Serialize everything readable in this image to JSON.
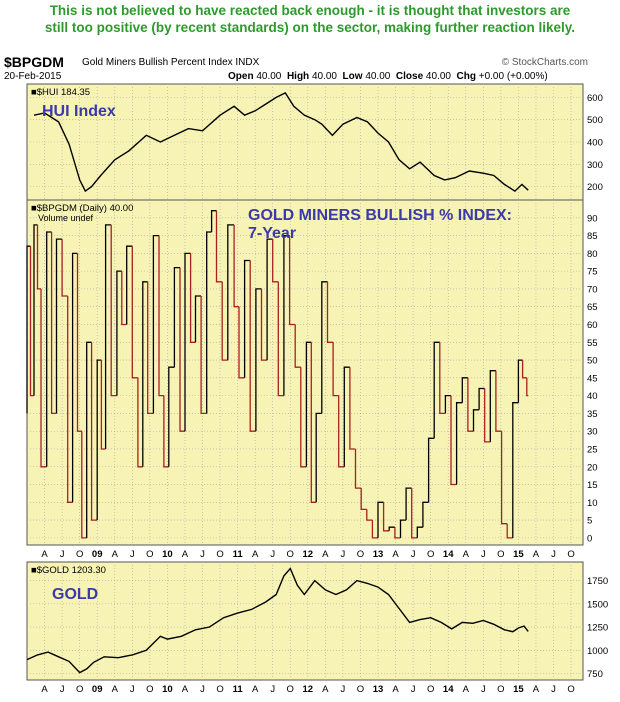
{
  "headline": {
    "line1": "This is not believed to have reacted back enough - it is thought that investors are",
    "line2": "still too positive (by recent standards) on the sector, making further reaction likely."
  },
  "header": {
    "symbol": "$BPGDM",
    "description": "Gold Miners Bullish Percent Index",
    "exchange": "INDX",
    "credit": "© StockCharts.com",
    "date": "20-Feb-2015",
    "open_label": "Open",
    "open": "40.00",
    "high_label": "High",
    "high": "40.00",
    "low_label": "Low",
    "low": "40.00",
    "close_label": "Close",
    "close": "40.00",
    "chg_label": "Chg",
    "chg": "+0.00 (+0.00%)"
  },
  "colors": {
    "panel_bg": "#f7f3b5",
    "grid": "#a8a8a8",
    "price": "#000000",
    "bp_down": "#a82020",
    "annotation": "#3a3aa8",
    "headline": "#2e9a2e"
  },
  "chart_data": [
    {
      "type": "line",
      "legend": "$HUI 184.35",
      "annotation": "HUI Index",
      "yticks": [
        200,
        300,
        400,
        500,
        600
      ],
      "ylim": [
        140,
        660
      ],
      "x": [
        2008.1,
        2008.25,
        2008.45,
        2008.6,
        2008.75,
        2008.83,
        2008.92,
        2009.05,
        2009.25,
        2009.45,
        2009.7,
        2009.9,
        2010.1,
        2010.3,
        2010.5,
        2010.75,
        2010.95,
        2011.1,
        2011.25,
        2011.4,
        2011.55,
        2011.68,
        2011.8,
        2011.95,
        2012.1,
        2012.2,
        2012.35,
        2012.5,
        2012.7,
        2012.85,
        2013.0,
        2013.15,
        2013.3,
        2013.45,
        2013.6,
        2013.8,
        2013.95,
        2014.1,
        2014.3,
        2014.5,
        2014.65,
        2014.8,
        2014.95,
        2015.05,
        2015.14
      ],
      "y": [
        520,
        530,
        490,
        390,
        230,
        180,
        200,
        250,
        320,
        360,
        430,
        400,
        430,
        460,
        450,
        520,
        560,
        520,
        540,
        570,
        600,
        620,
        560,
        520,
        500,
        480,
        430,
        480,
        510,
        490,
        440,
        400,
        320,
        280,
        310,
        250,
        230,
        240,
        270,
        260,
        250,
        210,
        180,
        210,
        184
      ]
    },
    {
      "type": "line",
      "legend": "$BPGDM (Daily) 40.00",
      "legend2": "Volume undef",
      "annotation_line1": "GOLD MINERS BULLISH % INDEX:",
      "annotation_line2": "7-Year",
      "yticks": [
        0,
        5,
        10,
        15,
        20,
        25,
        30,
        35,
        40,
        45,
        50,
        55,
        60,
        65,
        70,
        75,
        80,
        85,
        90
      ],
      "ylim": [
        -2,
        95
      ],
      "x": [
        2008.0,
        2008.05,
        2008.1,
        2008.15,
        2008.2,
        2008.28,
        2008.35,
        2008.42,
        2008.5,
        2008.58,
        2008.65,
        2008.72,
        2008.78,
        2008.85,
        2008.92,
        2009.0,
        2009.06,
        2009.12,
        2009.2,
        2009.28,
        2009.35,
        2009.42,
        2009.5,
        2009.58,
        2009.65,
        2009.72,
        2009.8,
        2009.88,
        2009.95,
        2010.02,
        2010.1,
        2010.18,
        2010.25,
        2010.33,
        2010.4,
        2010.48,
        2010.56,
        2010.63,
        2010.7,
        2010.78,
        2010.86,
        2010.95,
        2011.02,
        2011.1,
        2011.18,
        2011.26,
        2011.34,
        2011.42,
        2011.5,
        2011.58,
        2011.66,
        2011.74,
        2011.82,
        2011.9,
        2011.98,
        2012.05,
        2012.12,
        2012.2,
        2012.28,
        2012.36,
        2012.44,
        2012.52,
        2012.6,
        2012.68,
        2012.76,
        2012.84,
        2012.92,
        2013.0,
        2013.08,
        2013.16,
        2013.24,
        2013.32,
        2013.4,
        2013.48,
        2013.56,
        2013.64,
        2013.72,
        2013.8,
        2013.88,
        2013.96,
        2014.04,
        2014.12,
        2014.2,
        2014.28,
        2014.36,
        2014.44,
        2014.52,
        2014.6,
        2014.68,
        2014.76,
        2014.84,
        2014.92,
        2015.0,
        2015.06,
        2015.12,
        2015.14
      ],
      "y": [
        35,
        82,
        40,
        88,
        70,
        20,
        86,
        35,
        84,
        68,
        10,
        80,
        30,
        0,
        55,
        5,
        50,
        25,
        88,
        40,
        75,
        60,
        82,
        45,
        20,
        72,
        35,
        85,
        40,
        20,
        48,
        76,
        30,
        80,
        55,
        68,
        35,
        86,
        92,
        72,
        50,
        88,
        65,
        45,
        78,
        30,
        70,
        50,
        84,
        72,
        40,
        85,
        60,
        48,
        20,
        55,
        10,
        35,
        72,
        55,
        40,
        20,
        48,
        25,
        14,
        8,
        5,
        0,
        10,
        2,
        3,
        0,
        5,
        14,
        0,
        3,
        10,
        28,
        55,
        35,
        40,
        15,
        38,
        45,
        30,
        36,
        42,
        27,
        47,
        30,
        4,
        0,
        38,
        50,
        45,
        40
      ]
    },
    {
      "type": "line",
      "legend": "$GOLD 1203.30",
      "annotation": "GOLD",
      "yticks": [
        750,
        1000,
        1250,
        1500,
        1750
      ],
      "ylim": [
        680,
        1950
      ],
      "x": [
        2008.0,
        2008.15,
        2008.3,
        2008.45,
        2008.6,
        2008.75,
        2008.85,
        2008.95,
        2009.1,
        2009.3,
        2009.5,
        2009.7,
        2009.9,
        2010.0,
        2010.2,
        2010.4,
        2010.6,
        2010.8,
        2011.0,
        2011.2,
        2011.4,
        2011.55,
        2011.66,
        2011.75,
        2011.85,
        2011.95,
        2012.1,
        2012.25,
        2012.4,
        2012.55,
        2012.7,
        2012.85,
        2013.0,
        2013.15,
        2013.3,
        2013.45,
        2013.6,
        2013.75,
        2013.9,
        2014.05,
        2014.2,
        2014.35,
        2014.5,
        2014.65,
        2014.8,
        2014.92,
        2015.0,
        2015.08,
        2015.14
      ],
      "y": [
        900,
        950,
        980,
        930,
        880,
        760,
        800,
        870,
        930,
        920,
        950,
        1000,
        1150,
        1120,
        1150,
        1220,
        1250,
        1350,
        1400,
        1440,
        1520,
        1600,
        1800,
        1880,
        1700,
        1600,
        1750,
        1650,
        1600,
        1650,
        1750,
        1720,
        1680,
        1600,
        1450,
        1300,
        1330,
        1350,
        1300,
        1230,
        1300,
        1290,
        1320,
        1280,
        1220,
        1200,
        1240,
        1260,
        1203
      ]
    }
  ],
  "x_axis": {
    "labels": [
      "A",
      "J",
      "O",
      "09",
      "A",
      "J",
      "O",
      "10",
      "A",
      "J",
      "O",
      "11",
      "A",
      "J",
      "O",
      "12",
      "A",
      "J",
      "O",
      "13",
      "A",
      "J",
      "O",
      "14",
      "A",
      "J",
      "O",
      "15",
      "A",
      "J",
      "O"
    ],
    "positions": [
      2008.25,
      2008.5,
      2008.75,
      2009.0,
      2009.25,
      2009.5,
      2009.75,
      2010.0,
      2010.25,
      2010.5,
      2010.75,
      2011.0,
      2011.25,
      2011.5,
      2011.75,
      2012.0,
      2012.25,
      2012.5,
      2012.75,
      2013.0,
      2013.25,
      2013.5,
      2013.75,
      2014.0,
      2014.25,
      2014.5,
      2014.75,
      2015.0,
      2015.25,
      2015.5,
      2015.75
    ],
    "xlim": [
      2008.0,
      2015.92
    ]
  }
}
